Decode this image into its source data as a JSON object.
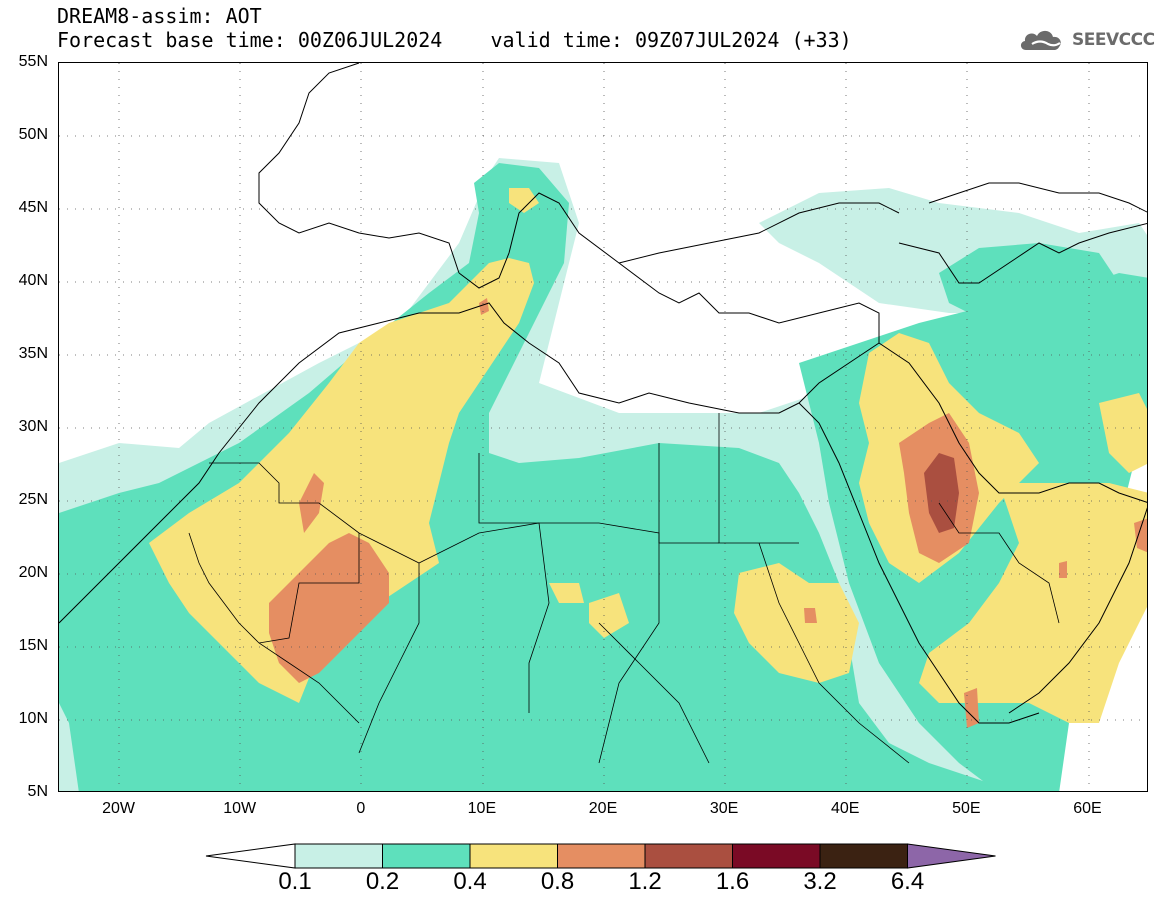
{
  "title": {
    "line1": "DREAM8-assim: AOT",
    "line2": "Forecast base time: 00Z06JUL2024    valid time: 09Z07JUL2024 (+33)"
  },
  "logo": {
    "text": "SEEVCCC",
    "icon": "cloud-icon"
  },
  "map": {
    "lon_range": [
      -25,
      65
    ],
    "lat_range": [
      5,
      55
    ],
    "lat_ticks": [
      {
        "value": 55,
        "label": "55N"
      },
      {
        "value": 50,
        "label": "50N"
      },
      {
        "value": 45,
        "label": "45N"
      },
      {
        "value": 40,
        "label": "40N"
      },
      {
        "value": 35,
        "label": "35N"
      },
      {
        "value": 30,
        "label": "30N"
      },
      {
        "value": 25,
        "label": "25N"
      },
      {
        "value": 20,
        "label": "20N"
      },
      {
        "value": 15,
        "label": "15N"
      },
      {
        "value": 10,
        "label": "10N"
      },
      {
        "value": 5,
        "label": "5N"
      }
    ],
    "lon_ticks": [
      {
        "value": -20,
        "label": "20W"
      },
      {
        "value": -10,
        "label": "10W"
      },
      {
        "value": 0,
        "label": "0"
      },
      {
        "value": 10,
        "label": "10E"
      },
      {
        "value": 20,
        "label": "20E"
      },
      {
        "value": 30,
        "label": "30E"
      },
      {
        "value": 40,
        "label": "40E"
      },
      {
        "value": 50,
        "label": "50E"
      },
      {
        "value": 60,
        "label": "60E"
      }
    ],
    "grid": "dotted",
    "coastline_color": "#000000"
  },
  "colorbar": {
    "levels": [
      "0.1",
      "0.2",
      "0.4",
      "0.8",
      "1.2",
      "1.6",
      "3.2",
      "6.4"
    ],
    "colors": [
      "#ffffff",
      "#c8f0e6",
      "#5ee0bc",
      "#f7e37c",
      "#e58e62",
      "#aa4f40",
      "#7a0a25",
      "#3b2212",
      "#8d66a8"
    ]
  }
}
